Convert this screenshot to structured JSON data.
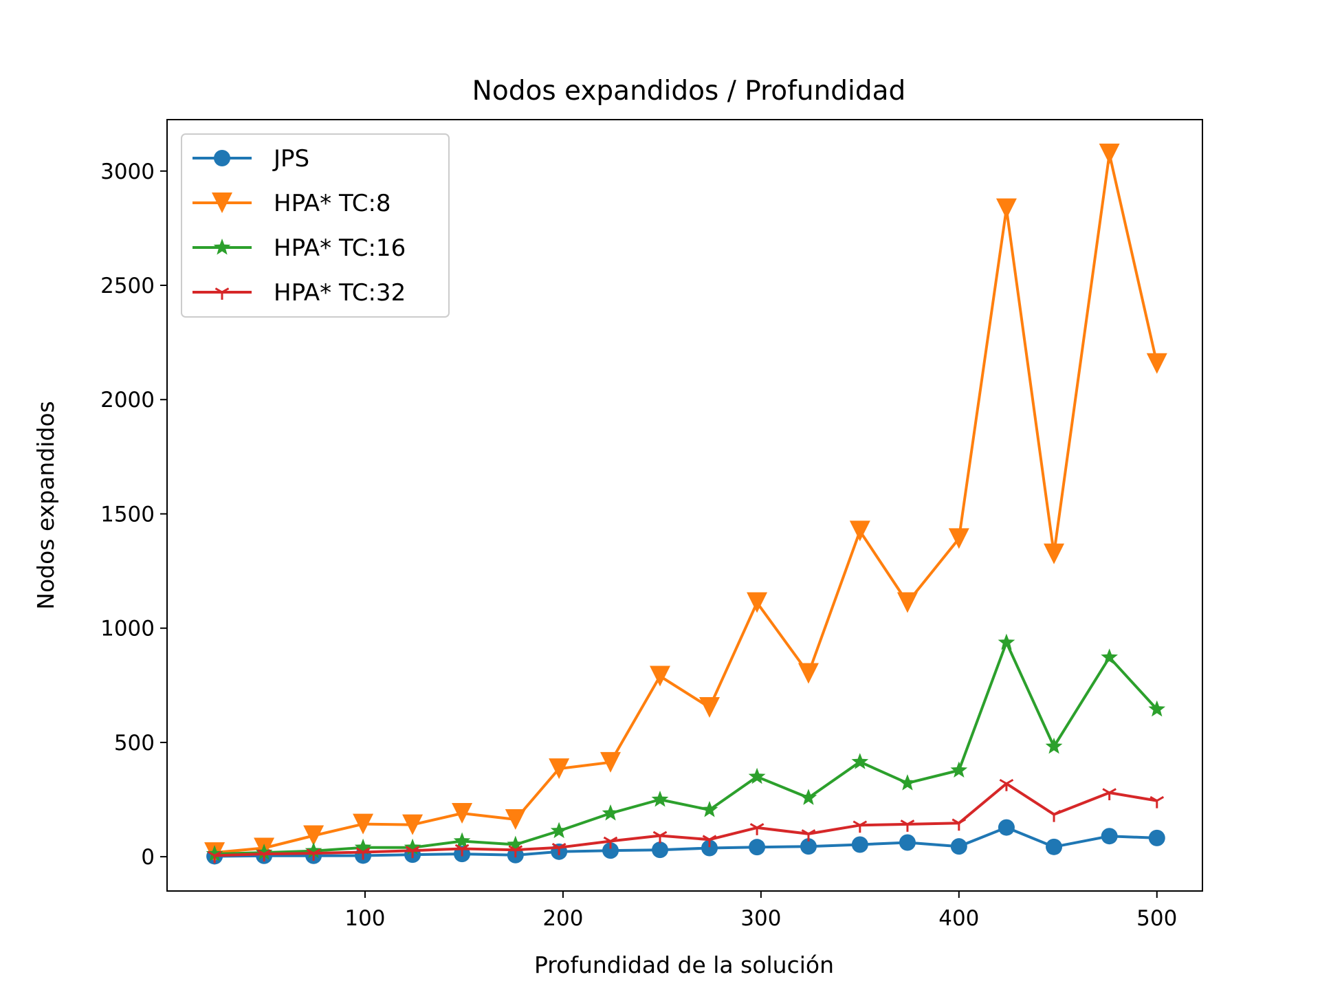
{
  "chart_data": {
    "type": "line",
    "title": "Nodos expandidos / Profundidad",
    "xlabel": "Profundidad de la solución",
    "ylabel": "Nodos expandidos",
    "xlim": [
      0,
      523
    ],
    "ylim": [
      -150,
      3225
    ],
    "xticks": [
      100,
      200,
      300,
      400,
      500
    ],
    "yticks": [
      0,
      500,
      1000,
      1500,
      2000,
      2500,
      3000
    ],
    "grid": false,
    "legend_position": "top-left",
    "x": [
      24,
      49,
      74,
      99,
      124,
      149,
      176,
      198,
      224,
      249,
      274,
      298,
      324,
      350,
      374,
      400,
      424,
      448,
      476,
      500
    ],
    "series": [
      {
        "name": "JPS",
        "color": "#1f77b4",
        "marker": "circle",
        "values": [
          2,
          4,
          4,
          5,
          9,
          12,
          7,
          22,
          27,
          30,
          38,
          42,
          45,
          53,
          62,
          45,
          128,
          43,
          90,
          82
        ]
      },
      {
        "name": "HPA* TC:8",
        "color": "#ff7f0e",
        "marker": "triangle-down",
        "values": [
          18,
          38,
          92,
          143,
          140,
          190,
          163,
          385,
          413,
          790,
          653,
          1112,
          802,
          1425,
          1112,
          1392,
          2835,
          1325,
          3075,
          2158
        ]
      },
      {
        "name": "HPA* TC:16",
        "color": "#2ca02c",
        "marker": "star",
        "values": [
          12,
          18,
          25,
          40,
          40,
          68,
          53,
          113,
          190,
          250,
          205,
          350,
          258,
          415,
          322,
          378,
          937,
          482,
          872,
          645
        ]
      },
      {
        "name": "HPA* TC:32",
        "color": "#d62728",
        "marker": "tri-down",
        "values": [
          5,
          12,
          15,
          20,
          27,
          35,
          30,
          40,
          68,
          92,
          75,
          127,
          100,
          138,
          142,
          147,
          320,
          185,
          280,
          245
        ]
      }
    ]
  }
}
